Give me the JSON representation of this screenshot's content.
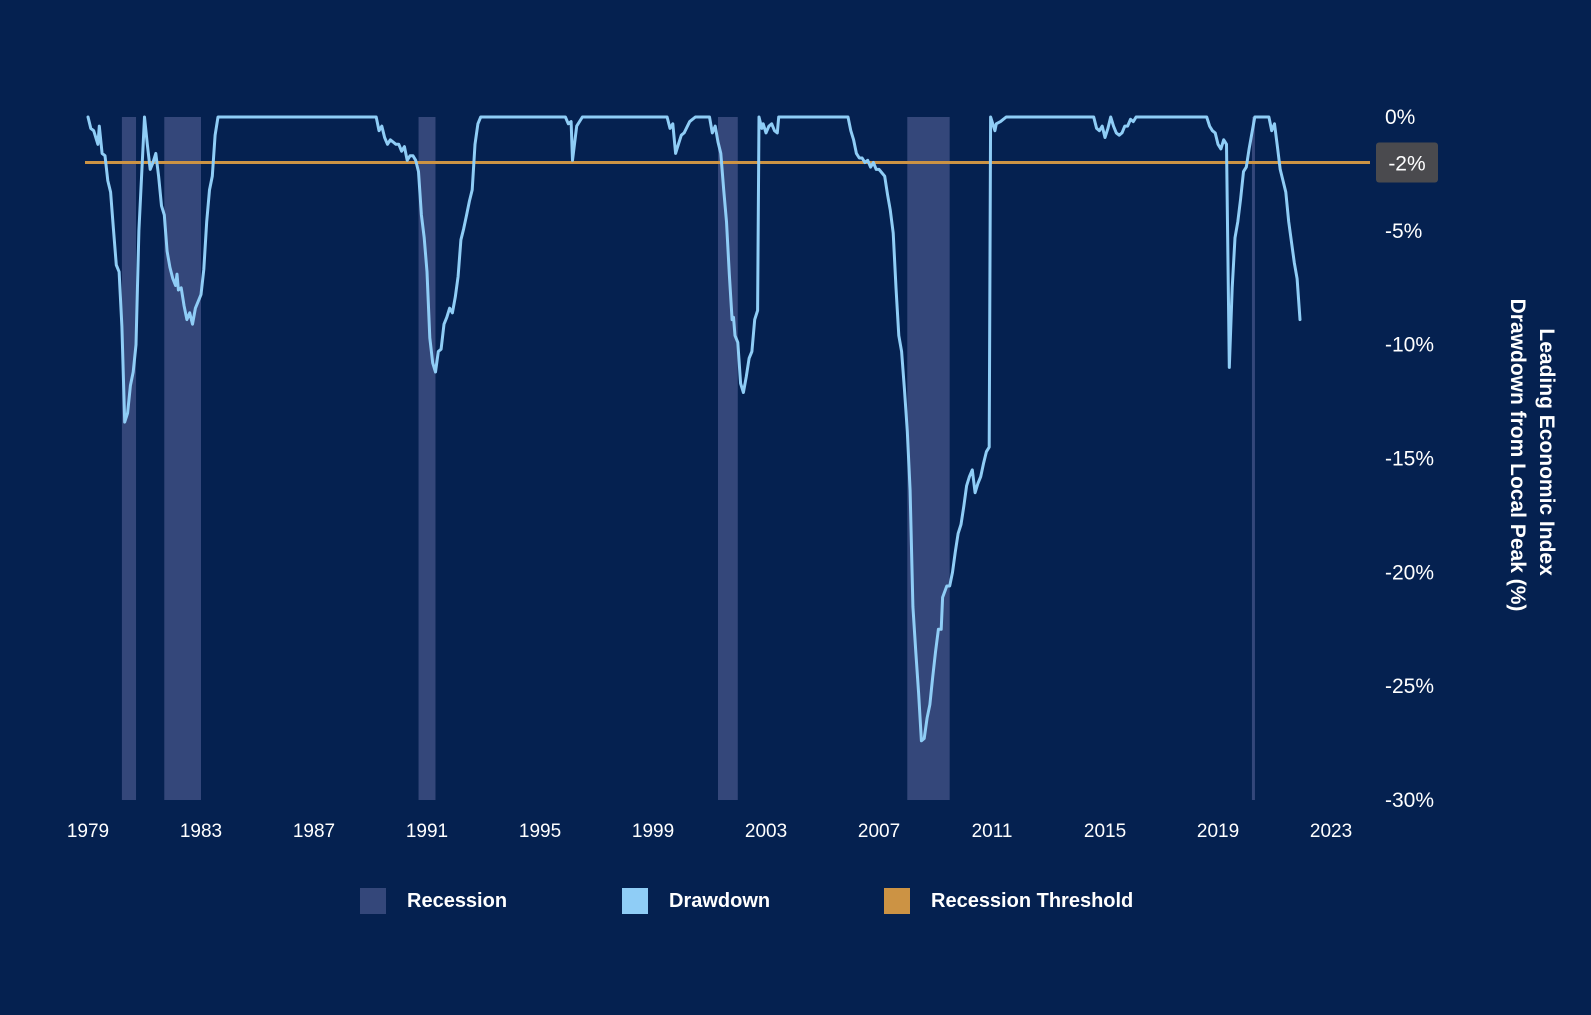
{
  "chart_data": {
    "type": "line",
    "ylabel_line1": "Leading Economic Index",
    "ylabel_line2": "Drawdown from Local Peak (%)",
    "x_ticks": [
      "1979",
      "1983",
      "1987",
      "1991",
      "1995",
      "1999",
      "2003",
      "2007",
      "2011",
      "2015",
      "2019",
      "2023"
    ],
    "y_ticks": [
      {
        "value": 0,
        "label": "0%"
      },
      {
        "value": -5,
        "label": "-5%"
      },
      {
        "value": -10,
        "label": "-10%"
      },
      {
        "value": -15,
        "label": "-15%"
      },
      {
        "value": -20,
        "label": "-20%"
      },
      {
        "value": -25,
        "label": "-25%"
      },
      {
        "value": -30,
        "label": "-30%"
      }
    ],
    "xlim": [
      1979.0,
      2023.6
    ],
    "ylim": [
      -30,
      0
    ],
    "threshold": {
      "value": -2,
      "label": "-2%"
    },
    "recessions": [
      [
        1980.2,
        1980.7
      ],
      [
        1981.7,
        1983.0
      ],
      [
        1990.7,
        1991.3
      ],
      [
        2001.3,
        2002.0
      ],
      [
        2008.0,
        2009.5
      ],
      [
        2020.2,
        2020.3
      ]
    ],
    "series": [
      {
        "name": "Drawdown",
        "points": [
          [
            1979.0,
            0.0
          ],
          [
            1979.1,
            -0.5
          ],
          [
            1979.2,
            -0.6
          ],
          [
            1979.3,
            -1.0
          ],
          [
            1979.35,
            -1.2
          ],
          [
            1979.4,
            -0.4
          ],
          [
            1979.5,
            -1.6
          ],
          [
            1979.6,
            -1.7
          ],
          [
            1979.7,
            -2.8
          ],
          [
            1979.8,
            -3.3
          ],
          [
            1979.9,
            -4.9
          ],
          [
            1980.0,
            -6.5
          ],
          [
            1980.1,
            -6.8
          ],
          [
            1980.2,
            -9.2
          ],
          [
            1980.3,
            -13.4
          ],
          [
            1980.4,
            -13.0
          ],
          [
            1980.5,
            -11.8
          ],
          [
            1980.6,
            -11.2
          ],
          [
            1980.7,
            -10.0
          ],
          [
            1980.8,
            -5.0
          ],
          [
            1981.0,
            0.0
          ],
          [
            1981.1,
            -1.2
          ],
          [
            1981.2,
            -2.3
          ],
          [
            1981.3,
            -2.0
          ],
          [
            1981.4,
            -1.6
          ],
          [
            1981.5,
            -2.6
          ],
          [
            1981.6,
            -3.9
          ],
          [
            1981.7,
            -4.3
          ],
          [
            1981.8,
            -5.9
          ],
          [
            1981.9,
            -6.6
          ],
          [
            1982.0,
            -7.1
          ],
          [
            1982.1,
            -7.4
          ],
          [
            1982.15,
            -6.9
          ],
          [
            1982.2,
            -7.6
          ],
          [
            1982.3,
            -7.5
          ],
          [
            1982.4,
            -8.3
          ],
          [
            1982.5,
            -8.9
          ],
          [
            1982.6,
            -8.6
          ],
          [
            1982.7,
            -9.1
          ],
          [
            1982.8,
            -8.4
          ],
          [
            1983.0,
            -7.8
          ],
          [
            1983.1,
            -6.7
          ],
          [
            1983.2,
            -4.6
          ],
          [
            1983.3,
            -3.2
          ],
          [
            1983.4,
            -2.6
          ],
          [
            1983.5,
            -0.8
          ],
          [
            1983.6,
            0.0
          ],
          [
            1989.2,
            0.0
          ],
          [
            1989.3,
            -0.6
          ],
          [
            1989.4,
            -0.4
          ],
          [
            1989.5,
            -0.9
          ],
          [
            1989.6,
            -1.2
          ],
          [
            1989.7,
            -1.0
          ],
          [
            1989.8,
            -1.1
          ],
          [
            1989.9,
            -1.2
          ],
          [
            1990.0,
            -1.2
          ],
          [
            1990.1,
            -1.5
          ],
          [
            1990.2,
            -1.3
          ],
          [
            1990.3,
            -1.9
          ],
          [
            1990.4,
            -1.7
          ],
          [
            1990.5,
            -1.7
          ],
          [
            1990.6,
            -1.9
          ],
          [
            1990.7,
            -2.4
          ],
          [
            1990.8,
            -4.3
          ],
          [
            1990.9,
            -5.3
          ],
          [
            1991.0,
            -6.8
          ],
          [
            1991.1,
            -9.7
          ],
          [
            1991.2,
            -10.8
          ],
          [
            1991.3,
            -11.2
          ],
          [
            1991.4,
            -10.3
          ],
          [
            1991.5,
            -10.2
          ],
          [
            1991.6,
            -9.1
          ],
          [
            1991.7,
            -8.8
          ],
          [
            1991.8,
            -8.4
          ],
          [
            1991.9,
            -8.6
          ],
          [
            1992.0,
            -7.9
          ],
          [
            1992.1,
            -7.0
          ],
          [
            1992.2,
            -5.4
          ],
          [
            1992.3,
            -4.9
          ],
          [
            1992.4,
            -4.3
          ],
          [
            1992.5,
            -3.7
          ],
          [
            1992.6,
            -3.2
          ],
          [
            1992.7,
            -1.2
          ],
          [
            1992.8,
            -0.3
          ],
          [
            1992.9,
            0.0
          ],
          [
            1995.9,
            0.0
          ],
          [
            1996.0,
            -0.3
          ],
          [
            1996.1,
            -0.2
          ],
          [
            1996.15,
            -1.9
          ],
          [
            1996.3,
            -0.4
          ],
          [
            1996.5,
            0.0
          ],
          [
            1999.5,
            0.0
          ],
          [
            1999.6,
            -0.5
          ],
          [
            1999.7,
            -0.3
          ],
          [
            1999.8,
            -1.6
          ],
          [
            1999.9,
            -1.2
          ],
          [
            2000.0,
            -0.8
          ],
          [
            2000.1,
            -0.7
          ],
          [
            2000.3,
            -0.2
          ],
          [
            2000.5,
            0.0
          ],
          [
            2001.0,
            0.0
          ],
          [
            2001.1,
            -0.7
          ],
          [
            2001.2,
            -0.4
          ],
          [
            2001.3,
            -1.1
          ],
          [
            2001.4,
            -1.6
          ],
          [
            2001.5,
            -3.2
          ],
          [
            2001.6,
            -4.6
          ],
          [
            2001.7,
            -6.9
          ],
          [
            2001.8,
            -8.9
          ],
          [
            2001.85,
            -8.8
          ],
          [
            2001.9,
            -9.6
          ],
          [
            2002.0,
            -9.9
          ],
          [
            2002.1,
            -11.7
          ],
          [
            2002.2,
            -12.1
          ],
          [
            2002.3,
            -11.4
          ],
          [
            2002.4,
            -10.6
          ],
          [
            2002.5,
            -10.3
          ],
          [
            2002.6,
            -8.9
          ],
          [
            2002.7,
            -8.5
          ],
          [
            2002.75,
            0.0
          ],
          [
            2002.85,
            -0.5
          ],
          [
            2002.9,
            -0.3
          ],
          [
            2003.0,
            -0.7
          ],
          [
            2003.1,
            -0.4
          ],
          [
            2003.2,
            -0.3
          ],
          [
            2003.3,
            -0.6
          ],
          [
            2003.4,
            -0.7
          ],
          [
            2003.45,
            0.0
          ],
          [
            2005.9,
            0.0
          ],
          [
            2006.0,
            -0.6
          ],
          [
            2006.1,
            -1.0
          ],
          [
            2006.2,
            -1.6
          ],
          [
            2006.3,
            -1.8
          ],
          [
            2006.4,
            -1.8
          ],
          [
            2006.5,
            -2.0
          ],
          [
            2006.6,
            -1.9
          ],
          [
            2006.7,
            -2.2
          ],
          [
            2006.8,
            -2.0
          ],
          [
            2006.9,
            -2.3
          ],
          [
            2007.0,
            -2.3
          ],
          [
            2007.2,
            -2.6
          ],
          [
            2007.3,
            -3.4
          ],
          [
            2007.4,
            -4.1
          ],
          [
            2007.5,
            -5.1
          ],
          [
            2007.6,
            -7.5
          ],
          [
            2007.7,
            -9.6
          ],
          [
            2007.8,
            -10.3
          ],
          [
            2007.9,
            -12.0
          ],
          [
            2008.0,
            -13.8
          ],
          [
            2008.1,
            -16.4
          ],
          [
            2008.2,
            -21.5
          ],
          [
            2008.3,
            -23.5
          ],
          [
            2008.4,
            -25.3
          ],
          [
            2008.5,
            -27.4
          ],
          [
            2008.6,
            -27.3
          ],
          [
            2008.7,
            -26.4
          ],
          [
            2008.8,
            -25.8
          ],
          [
            2008.85,
            -25.2
          ],
          [
            2008.9,
            -24.6
          ],
          [
            2009.0,
            -23.5
          ],
          [
            2009.1,
            -22.5
          ],
          [
            2009.2,
            -22.5
          ],
          [
            2009.25,
            -21.1
          ],
          [
            2009.4,
            -20.6
          ],
          [
            2009.5,
            -20.6
          ],
          [
            2009.6,
            -20.0
          ],
          [
            2009.7,
            -19.1
          ],
          [
            2009.8,
            -18.3
          ],
          [
            2009.9,
            -17.9
          ],
          [
            2010.0,
            -17.1
          ],
          [
            2010.1,
            -16.2
          ],
          [
            2010.2,
            -15.8
          ],
          [
            2010.3,
            -15.5
          ],
          [
            2010.4,
            -16.5
          ],
          [
            2010.5,
            -16.1
          ],
          [
            2010.6,
            -15.8
          ],
          [
            2010.7,
            -15.2
          ],
          [
            2010.8,
            -14.7
          ],
          [
            2010.9,
            -14.5
          ],
          [
            2010.95,
            0.0
          ],
          [
            2011.1,
            -0.6
          ],
          [
            2011.15,
            -0.3
          ],
          [
            2011.3,
            -0.2
          ],
          [
            2011.5,
            0.0
          ],
          [
            2014.6,
            0.0
          ],
          [
            2014.7,
            -0.5
          ],
          [
            2014.8,
            -0.6
          ],
          [
            2014.9,
            -0.4
          ],
          [
            2015.0,
            -0.9
          ],
          [
            2015.1,
            -0.5
          ],
          [
            2015.2,
            0.0
          ],
          [
            2015.3,
            -0.4
          ],
          [
            2015.4,
            -0.7
          ],
          [
            2015.5,
            -0.8
          ],
          [
            2015.6,
            -0.7
          ],
          [
            2015.7,
            -0.4
          ],
          [
            2015.8,
            -0.4
          ],
          [
            2015.9,
            -0.1
          ],
          [
            2016.0,
            -0.2
          ],
          [
            2016.1,
            0.0
          ],
          [
            2018.6,
            0.0
          ],
          [
            2018.7,
            -0.4
          ],
          [
            2018.8,
            -0.6
          ],
          [
            2018.9,
            -0.7
          ],
          [
            2019.0,
            -1.2
          ],
          [
            2019.1,
            -1.4
          ],
          [
            2019.2,
            -1.0
          ],
          [
            2019.3,
            -1.2
          ],
          [
            2019.4,
            -11.0
          ],
          [
            2019.5,
            -7.5
          ],
          [
            2019.6,
            -5.3
          ],
          [
            2019.7,
            -4.6
          ],
          [
            2019.8,
            -3.6
          ],
          [
            2019.9,
            -2.4
          ],
          [
            2020.0,
            -2.2
          ],
          [
            2020.1,
            -1.4
          ],
          [
            2020.3,
            0.0
          ],
          [
            2020.8,
            0.0
          ],
          [
            2020.9,
            -0.6
          ],
          [
            2021.0,
            -0.3
          ],
          [
            2021.1,
            -1.3
          ],
          [
            2021.2,
            -2.3
          ],
          [
            2021.3,
            -2.8
          ],
          [
            2021.4,
            -3.3
          ],
          [
            2021.5,
            -4.6
          ],
          [
            2021.6,
            -5.5
          ],
          [
            2021.7,
            -6.4
          ],
          [
            2021.8,
            -7.1
          ],
          [
            2021.9,
            -8.9
          ]
        ]
      }
    ]
  },
  "legend": [
    {
      "label": "Recession",
      "color": "#34477a"
    },
    {
      "label": "Drawdown",
      "color": "#8fcdf6"
    },
    {
      "label": "Recession Threshold",
      "color": "#cc9344"
    }
  ],
  "colors": {
    "background": "#052150",
    "line": "#8fcdf6",
    "threshold": "#cc9344",
    "recession": "#34477a",
    "threshold_badge": "#4a4a4e",
    "text": "#ffffff"
  }
}
